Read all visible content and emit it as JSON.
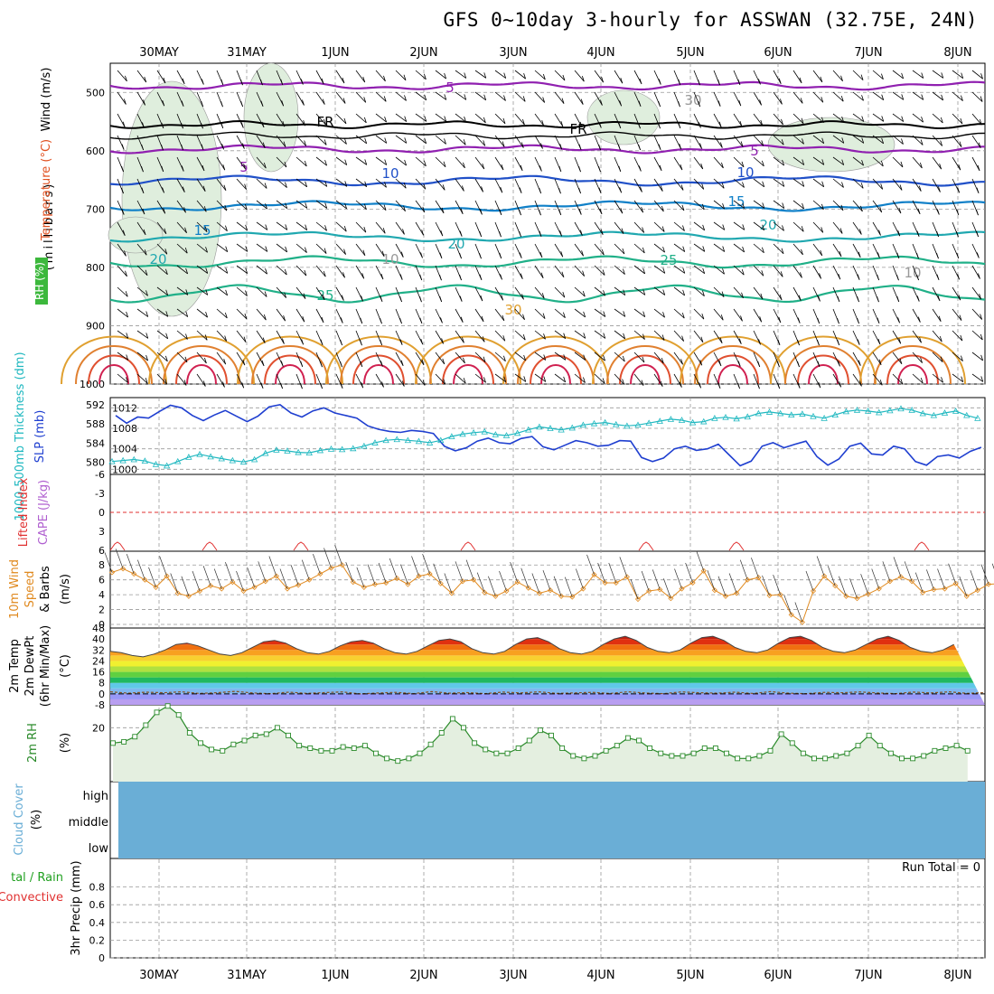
{
  "title": "GFS 0~10day 3-hourly for ASSWAN (32.75E, 24N)",
  "dates": [
    "30MAY",
    "31MAY",
    "1JUN",
    "2JUN",
    "3JUN",
    "4JUN",
    "5JUN",
    "6JUN",
    "7JUN",
    "8JUN"
  ],
  "colors": {
    "slp": "#1f3fd0",
    "thickness": "#20b8c0",
    "wind": "#e08a20",
    "rh": "#2a8a2a",
    "cloud": "#6aaed6",
    "lifted": "#e03030",
    "cape": "#b060d0",
    "temp_label": "#e05020",
    "precip_conv": "#e03030",
    "precip_total": "#20a020"
  },
  "panels": {
    "upper": {
      "ylabel_units": "(millibars)",
      "label_wind": "Wind (m/s)",
      "label_temp": "Temperature (°C)",
      "label_rh": "RH (%)",
      "ticks": [
        "500",
        "600",
        "700",
        "800",
        "900",
        "1000"
      ],
      "contour_labels": {
        "fr": "FR",
        "t5": "5",
        "t10": "10",
        "t15": "15",
        "t20": "20",
        "t25": "25",
        "t30": "30",
        "rh10": "10",
        "rh30": "30"
      }
    },
    "slp": {
      "label_thick": "1000-500mb Thickness (dm)",
      "label_slp": "SLP (mb)",
      "left_ticks": [
        "592",
        "588",
        "584",
        "580"
      ],
      "right_ticks": [
        "1012",
        "1008",
        "1004",
        "1000"
      ]
    },
    "cape": {
      "label_li": "Lifted Index",
      "label_cape": "CAPE (J/kg)",
      "ticks": [
        "-6",
        "-3",
        "0",
        "3",
        "6"
      ]
    },
    "wind10": {
      "label_a": "10m Wind",
      "label_b": "Speed",
      "label_c": "& Barbs",
      "units": "(m/s)",
      "ticks": [
        "8",
        "6",
        "4",
        "2",
        "0"
      ]
    },
    "temp2m": {
      "label_a": "2m Temp",
      "label_b": "2m DewPt",
      "label_c": "(6hr Min/Max)",
      "units": "(°C)",
      "ticks": [
        "48",
        "40",
        "32",
        "24",
        "16",
        "8",
        "0",
        "-8"
      ]
    },
    "rh2m": {
      "label": "2m RH",
      "units": "(%)",
      "ticks": [
        "20"
      ]
    },
    "cloud": {
      "label": "Cloud Cover",
      "units": "(%)",
      "levels": [
        "high",
        "middle",
        "low"
      ]
    },
    "precip": {
      "label_a": "3hr Precip (mm)",
      "label_total": "tal / Rain",
      "label_conv": "Convective",
      "run_total": "Run Total = 0",
      "ticks": [
        "0.8",
        "0.6",
        "0.4",
        "0.2",
        "0"
      ]
    }
  },
  "chart_data": {
    "type": "line",
    "x_axis": "3-hourly steps from 29 May 12Z to 8 Jun 06Z",
    "series": [
      {
        "name": "SLP (mb)",
        "values": [
          1010.5,
          1009,
          1010.2,
          1010,
          1011.3,
          1012.5,
          1012,
          1010.5,
          1009.5,
          1010.6,
          1011.5,
          1010.4,
          1009.3,
          1010.4,
          1012.2,
          1012.6,
          1011,
          1010.2,
          1011.4,
          1012,
          1011,
          1010.5,
          1010,
          1008.5,
          1007.8,
          1007.4,
          1007.2,
          1007.6,
          1007.4,
          1007,
          1004.5,
          1003.6,
          1004.2,
          1005.5,
          1006.1,
          1005.2,
          1005,
          1006,
          1006.4,
          1004.4,
          1003.8,
          1004.7,
          1005.6,
          1005.2,
          1004.5,
          1004.7,
          1005.6,
          1005.5,
          1002.3,
          1001.5,
          1002.2,
          1004,
          1004.5,
          1003.7,
          1004,
          1004.9,
          1002.8,
          1000.7,
          1001.6,
          1004.5,
          1005.2,
          1004.2,
          1004.9,
          1005.5,
          1002.5,
          1000.8,
          1002,
          1004.5,
          1005.1,
          1003,
          1002.8,
          1004.5,
          1004,
          1001.5,
          1000.8,
          1002.5,
          1002.8,
          1002.2,
          1003.5,
          1004.3
        ]
      },
      {
        "name": "1000-500mb Thickness (dm)",
        "values": [
          580.2,
          580.4,
          580.6,
          580.3,
          579.6,
          579.3,
          580.2,
          581.1,
          581.7,
          581.2,
          580.8,
          580.4,
          580.1,
          580.6,
          581.9,
          582.6,
          582.4,
          582.1,
          582,
          582.5,
          582.8,
          582.7,
          582.9,
          583.4,
          584.1,
          584.6,
          584.8,
          584.6,
          584.4,
          584.1,
          584.6,
          585.4,
          585.9,
          586.2,
          586.4,
          585.8,
          585.6,
          586.1,
          586.8,
          587.4,
          587.1,
          586.8,
          587.2,
          587.8,
          588.1,
          588.3,
          587.9,
          587.6,
          587.8,
          588.2,
          588.6,
          589,
          588.8,
          588.3,
          588.5,
          589.2,
          589.4,
          589.1,
          589.5,
          590.2,
          590.5,
          590.2,
          589.9,
          590.1,
          589.6,
          589.2,
          589.9,
          590.6,
          590.9,
          590.7,
          590.4,
          590.8,
          591.2,
          590.9,
          590.2,
          589.8,
          590.3,
          590.7,
          589.8,
          589.2
        ]
      },
      {
        "name": "10m Wind Speed (m/s)",
        "values": [
          7,
          7.5,
          6.8,
          6,
          5,
          6.5,
          4.2,
          3.8,
          4.5,
          5.2,
          4.8,
          5.7,
          4.5,
          5,
          5.8,
          6.5,
          4.8,
          5.3,
          6,
          6.8,
          7.6,
          8,
          5.7,
          5,
          5.4,
          5.6,
          6.2,
          5.4,
          6.5,
          6.8,
          5.5,
          4.2,
          5.8,
          6,
          4.3,
          3.8,
          4.5,
          5.7,
          4.9,
          4.2,
          4.6,
          3.8,
          3.7,
          4.8,
          6.7,
          5.6,
          5.6,
          6.4,
          3.4,
          4.5,
          4.7,
          3.5,
          4.8,
          5.6,
          7.2,
          4.6,
          3.8,
          4.2,
          6,
          6.3,
          3.9,
          4,
          1.3,
          0.3,
          4.5,
          6.5,
          5.2,
          3.8,
          3.5,
          4.1,
          4.8,
          5.8,
          6.4,
          5.8,
          4.3,
          4.7,
          4.8,
          5.5,
          3.8,
          4.6,
          5.4,
          5.5,
          5.3,
          6.1,
          4.8,
          3.7,
          4.1,
          4.7,
          4.4,
          5.3,
          5.6
        ]
      },
      {
        "name": "2m Temp (°C)",
        "values": [
          31,
          30,
          28,
          27,
          29,
          32,
          36,
          37,
          35,
          32,
          29,
          28,
          30,
          34,
          38,
          39,
          37,
          33,
          30,
          29,
          31,
          35,
          38,
          39,
          37,
          33,
          30,
          29,
          31,
          35,
          39,
          40,
          38,
          33,
          30,
          29,
          31,
          36,
          40,
          41,
          38,
          33,
          30,
          29,
          31,
          36,
          40,
          42,
          39,
          34,
          31,
          30,
          32,
          37,
          41,
          42,
          39,
          34,
          31,
          30,
          32,
          37,
          41,
          42,
          39,
          34,
          31,
          30,
          32,
          36,
          40,
          42,
          39,
          34,
          31,
          30,
          32,
          36
        ]
      },
      {
        "name": "2m DewPt (°C)",
        "values": [
          1.5,
          0.5,
          1.2,
          0.8,
          1.5,
          0.3,
          0.8,
          1.8,
          0.6,
          0.2,
          1.2,
          0.4,
          0.9,
          1.4,
          0,
          0.6,
          1.1,
          0.2,
          1.6,
          0.5,
          0.9,
          0.2,
          1.3,
          0.7,
          1.5,
          0.4,
          0.7,
          1.1,
          0.3,
          1.5,
          0.6,
          0.2,
          1.4,
          0.8,
          0.5,
          1.2,
          0.3,
          1.6,
          0.5,
          0.2,
          1.1,
          0.8,
          1.4,
          0.6,
          0.2,
          1.3,
          0.7,
          1.5,
          0.4,
          0.9
        ]
      },
      {
        "name": "2m RH (%)",
        "values": [
          14,
          14.5,
          16.5,
          21,
          26,
          28.5,
          25,
          18,
          14,
          11.5,
          11,
          13.5,
          15,
          17,
          17.5,
          20,
          17,
          13,
          12,
          11,
          11,
          12.5,
          12,
          13,
          10,
          8,
          7,
          8,
          10,
          13.5,
          18,
          23.5,
          20,
          14,
          11.5,
          10,
          10,
          12,
          15,
          19,
          17,
          12,
          9,
          8,
          9,
          11,
          13,
          16,
          15,
          12,
          10,
          9,
          9,
          10,
          12,
          12,
          10,
          8,
          8,
          9,
          11,
          17.5,
          14,
          10,
          8,
          8,
          9,
          10,
          13,
          17,
          13,
          10,
          8,
          8,
          9,
          11,
          12,
          13,
          11
        ]
      },
      {
        "name": "Run Total",
        "values": [
          0
        ]
      }
    ],
    "ylim_slp": [
      999,
      1014
    ],
    "ylim_thickness": [
      577.5,
      593.5
    ],
    "ylim_wind": [
      0,
      9
    ],
    "ylim_temp": [
      -8,
      48
    ],
    "ylim_precip": [
      0,
      1
    ],
    "grid": true
  }
}
